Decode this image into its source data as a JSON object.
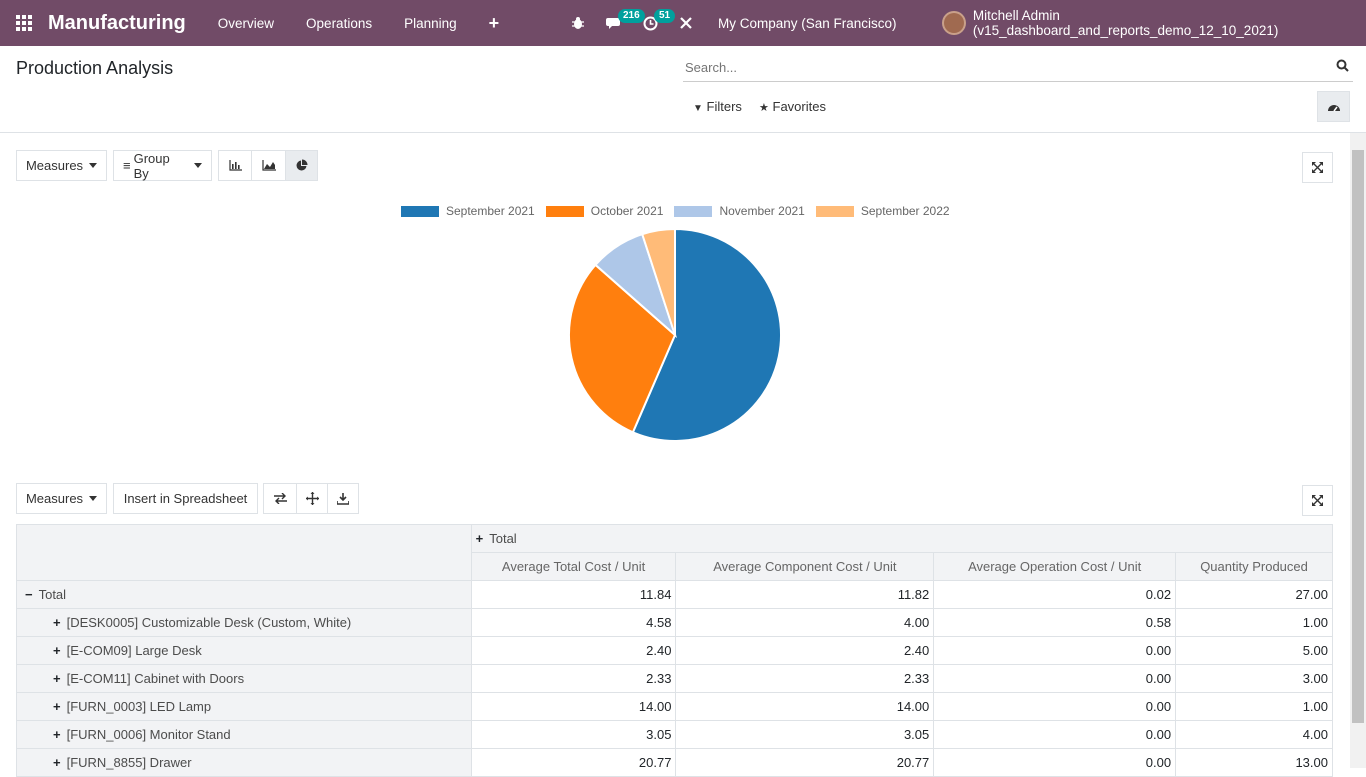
{
  "navbar": {
    "app_name": "Manufacturing",
    "menu": [
      "Overview",
      "Operations",
      "Planning"
    ],
    "plus": "+",
    "messages_count": "216",
    "activities_count": "51",
    "company": "My Company (San Francisco)",
    "user": "Mitchell Admin (v15_dashboard_and_reports_demo_12_10_2021)"
  },
  "control_panel": {
    "title": "Production Analysis",
    "search_placeholder": "Search...",
    "filters_label": "Filters",
    "favorites_label": "Favorites"
  },
  "graph": {
    "measures_label": "Measures",
    "group_by_label": "Group By",
    "active_view": "pie"
  },
  "chart_data": {
    "type": "pie",
    "labels": [
      "September 2021",
      "October 2021",
      "November 2021",
      "September 2022"
    ],
    "values": [
      56.5,
      30.0,
      8.5,
      5.0
    ],
    "colors": [
      "#1f77b4",
      "#ff7f0e",
      "#aec7e8",
      "#ffbb78"
    ],
    "legend_position": "top"
  },
  "pivot": {
    "measures_label": "Measures",
    "insert_label": "Insert in Spreadsheet",
    "col_group_header": "Total",
    "columns": [
      "Average Total Cost / Unit",
      "Average Component Cost / Unit",
      "Average Operation Cost / Unit",
      "Quantity Produced"
    ],
    "total_row": {
      "label": "Total",
      "values": [
        "11.84",
        "11.82",
        "0.02",
        "27.00"
      ]
    },
    "rows": [
      {
        "label": "[DESK0005] Customizable Desk (Custom, White)",
        "values": [
          "4.58",
          "4.00",
          "0.58",
          "1.00"
        ]
      },
      {
        "label": "[E-COM09] Large Desk",
        "values": [
          "2.40",
          "2.40",
          "0.00",
          "5.00"
        ]
      },
      {
        "label": "[E-COM11] Cabinet with Doors",
        "values": [
          "2.33",
          "2.33",
          "0.00",
          "3.00"
        ]
      },
      {
        "label": "[FURN_0003] LED Lamp",
        "values": [
          "14.00",
          "14.00",
          "0.00",
          "1.00"
        ]
      },
      {
        "label": "[FURN_0006] Monitor Stand",
        "values": [
          "3.05",
          "3.05",
          "0.00",
          "4.00"
        ]
      },
      {
        "label": "[FURN_8855] Drawer",
        "values": [
          "20.77",
          "20.77",
          "0.00",
          "13.00"
        ]
      }
    ]
  }
}
